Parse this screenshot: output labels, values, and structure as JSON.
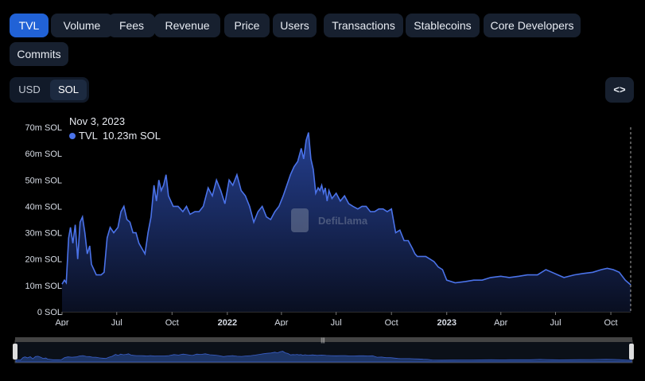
{
  "tabs": [
    {
      "label": "TVL",
      "active": true
    },
    {
      "label": "Volume"
    },
    {
      "label": "Fees"
    },
    {
      "label": "Revenue"
    },
    {
      "label": "Price"
    },
    {
      "label": "Users"
    },
    {
      "label": "Transactions"
    },
    {
      "label": "Stablecoins"
    },
    {
      "label": "Core Developers"
    },
    {
      "label": "Commits"
    }
  ],
  "unit_toggle": {
    "usd": "USD",
    "sol": "SOL",
    "selected": "SOL"
  },
  "embed_icon": "code-brackets-icon",
  "embed_label": "<>",
  "watermark": "DefiLlama",
  "tooltip": {
    "date": "Nov 3, 2023",
    "series": "TVL",
    "value": "10.23m SOL"
  },
  "colors": {
    "line": "#4a72e8",
    "fill_top": "#2b4aa8",
    "background": "#000000",
    "active_tab": "#2162d6"
  },
  "chart_data": {
    "type": "area",
    "x_ticks": [
      "Apr",
      "Jul",
      "Oct",
      "2022",
      "Apr",
      "Jul",
      "Oct",
      "2023",
      "Apr",
      "Jul",
      "Oct"
    ],
    "x_tick_bold": [
      false,
      false,
      false,
      true,
      false,
      false,
      false,
      true,
      false,
      false,
      false
    ],
    "y_ticks": [
      "0 SOL",
      "10m SOL",
      "20m SOL",
      "30m SOL",
      "40m SOL",
      "50m SOL",
      "60m SOL",
      "70m SOL"
    ],
    "ylim": [
      0,
      70
    ],
    "y_unit": "m SOL",
    "series": [
      {
        "name": "TVL",
        "x": [
          "2021-04-01",
          "2021-04-05",
          "2021-04-08",
          "2021-04-12",
          "2021-04-15",
          "2021-04-19",
          "2021-04-23",
          "2021-04-27",
          "2021-05-01",
          "2021-05-05",
          "2021-05-09",
          "2021-05-13",
          "2021-05-17",
          "2021-05-20",
          "2021-05-24",
          "2021-05-28",
          "2021-06-01",
          "2021-06-05",
          "2021-06-10",
          "2021-06-15",
          "2021-06-20",
          "2021-06-26",
          "2021-07-03",
          "2021-07-08",
          "2021-07-13",
          "2021-07-18",
          "2021-07-23",
          "2021-07-28",
          "2021-08-02",
          "2021-08-07",
          "2021-08-12",
          "2021-08-17",
          "2021-08-22",
          "2021-08-27",
          "2021-09-01",
          "2021-09-05",
          "2021-09-09",
          "2021-09-13",
          "2021-09-17",
          "2021-09-21",
          "2021-09-25",
          "2021-09-29",
          "2021-10-03",
          "2021-10-07",
          "2021-10-11",
          "2021-10-15",
          "2021-10-19",
          "2021-10-25",
          "2021-10-31",
          "2021-11-08",
          "2021-11-15",
          "2021-11-22",
          "2021-11-30",
          "2021-12-07",
          "2021-12-14",
          "2021-12-21",
          "2021-12-28",
          "2022-01-04",
          "2022-01-10",
          "2022-01-17",
          "2022-01-24",
          "2022-01-31",
          "2022-02-07",
          "2022-02-14",
          "2022-02-21",
          "2022-02-28",
          "2022-03-07",
          "2022-03-14",
          "2022-03-21",
          "2022-03-28",
          "2022-04-04",
          "2022-04-10",
          "2022-04-16",
          "2022-04-22",
          "2022-04-28",
          "2022-05-04",
          "2022-05-08",
          "2022-05-12",
          "2022-05-16",
          "2022-05-20",
          "2022-05-24",
          "2022-05-28",
          "2022-06-01",
          "2022-06-04",
          "2022-06-07",
          "2022-06-10",
          "2022-06-13",
          "2022-06-16",
          "2022-06-19",
          "2022-06-24",
          "2022-07-01",
          "2022-07-08",
          "2022-07-15",
          "2022-07-22",
          "2022-07-29",
          "2022-08-06",
          "2022-08-13",
          "2022-08-20",
          "2022-08-27",
          "2022-09-03",
          "2022-09-10",
          "2022-09-17",
          "2022-09-24",
          "2022-10-01",
          "2022-10-08",
          "2022-10-15",
          "2022-10-22",
          "2022-10-29",
          "2022-11-05",
          "2022-11-09",
          "2022-11-13",
          "2022-11-20",
          "2022-11-27",
          "2022-12-04",
          "2022-12-11",
          "2022-12-18",
          "2022-12-25",
          "2023-01-01",
          "2023-01-15",
          "2023-02-01",
          "2023-02-15",
          "2023-03-01",
          "2023-03-15",
          "2023-04-01",
          "2023-04-15",
          "2023-05-01",
          "2023-05-15",
          "2023-06-01",
          "2023-06-15",
          "2023-06-25",
          "2023-07-05",
          "2023-07-15",
          "2023-08-01",
          "2023-08-15",
          "2023-09-01",
          "2023-09-15",
          "2023-09-25",
          "2023-10-05",
          "2023-10-15",
          "2023-10-25",
          "2023-11-03"
        ],
        "y": [
          10.5,
          12,
          11,
          28,
          32,
          26,
          33,
          20,
          34,
          36,
          30,
          22,
          25,
          18,
          16,
          14,
          14,
          14,
          15,
          28,
          32,
          30,
          32,
          38,
          40,
          35,
          34,
          30,
          30,
          26,
          24,
          22,
          30,
          36,
          48,
          42,
          50,
          46,
          48,
          52,
          44,
          42,
          40,
          40,
          40,
          39,
          38,
          40,
          37,
          38,
          38,
          40,
          47,
          44,
          50,
          46,
          41,
          50,
          48,
          52,
          46,
          44,
          40,
          34,
          38,
          40,
          36,
          35,
          38,
          40,
          44,
          48,
          52,
          55,
          57,
          62,
          58,
          65,
          68,
          58,
          54,
          45,
          47,
          46,
          48,
          45,
          47,
          42,
          46,
          43,
          45,
          42,
          44,
          41,
          40,
          39,
          40,
          40,
          38,
          38,
          39,
          39,
          38,
          39,
          30,
          31,
          27,
          27,
          24,
          22,
          21,
          21,
          21,
          20,
          19,
          17,
          16,
          12,
          11,
          11.5,
          12,
          12,
          13,
          13.5,
          13,
          13.5,
          14,
          14,
          16,
          15,
          14,
          13,
          14,
          14.5,
          15,
          16,
          16.5,
          16,
          15,
          12,
          10.23
        ]
      }
    ]
  }
}
